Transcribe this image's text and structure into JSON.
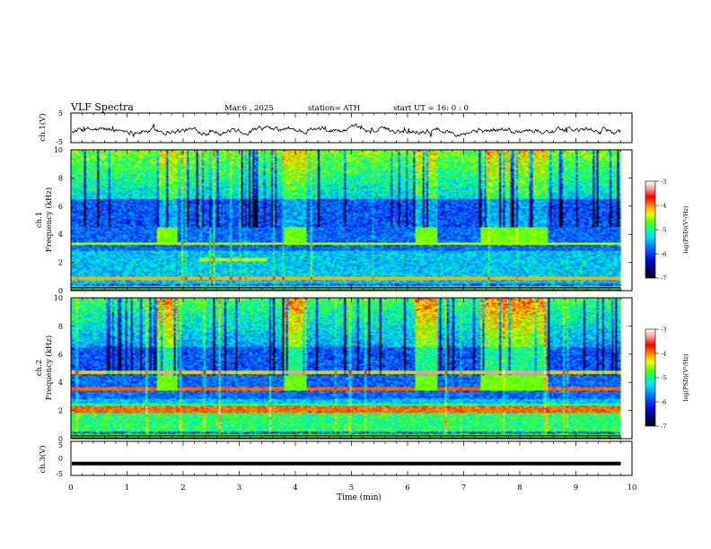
{
  "header": {
    "title": "VLF  Spectra",
    "date": "Mar.6  , 2025",
    "station": "station= ATH",
    "start_ut": "start  UT  =    16: 0  : 0"
  },
  "chart_data": [
    {
      "type": "line",
      "panel": "ch1-waveform",
      "ylabel": "ch.1(V)",
      "yticks": [
        "5",
        "-5"
      ],
      "ylim": [
        -5,
        5
      ],
      "xlim": [
        0,
        10
      ],
      "series": [
        {
          "values_description_only": false,
          "x_end": 9.8,
          "mean": 0,
          "amplitude": 1.2
        }
      ]
    },
    {
      "type": "heatmap",
      "panel": "ch1-spectrogram",
      "ylabel": "ch.1\nFrequency (kHz)",
      "ylabel_line1": "ch.1",
      "ylabel_line2": "Frequency  (kHz)",
      "yticks": [
        "10",
        "8",
        "6",
        "4",
        "2",
        "0"
      ],
      "ylim": [
        0,
        10
      ],
      "xlim": [
        0,
        10
      ],
      "data_end_min": 9.8,
      "bursts_min": [
        [
          1.52,
          1.9
        ],
        [
          3.8,
          4.2
        ],
        [
          6.15,
          6.55
        ],
        [
          7.3,
          8.5
        ]
      ],
      "colorbar": {
        "label": "log(PSD)(V²/Hz)",
        "ticks": [
          "-3",
          "-4",
          "-5",
          "-6",
          "-7"
        ],
        "range": [
          -7,
          -3
        ]
      }
    },
    {
      "type": "heatmap",
      "panel": "ch2-spectrogram",
      "ylabel_line1": "ch.2",
      "ylabel_line2": "Frequency  (kHz)",
      "yticks": [
        "10",
        "8",
        "6",
        "4",
        "2",
        "0"
      ],
      "ylim": [
        0,
        10
      ],
      "xlim": [
        0,
        10
      ],
      "data_end_min": 9.8,
      "bursts_min": [
        [
          1.52,
          1.9
        ],
        [
          3.8,
          4.2
        ],
        [
          6.15,
          6.55
        ],
        [
          7.3,
          8.5
        ]
      ],
      "colorbar": {
        "label": "log(PSD)(V²/Hz)",
        "ticks": [
          "-3",
          "-4",
          "-5",
          "-6",
          "-7"
        ],
        "range": [
          -7,
          -3
        ]
      }
    },
    {
      "type": "line",
      "panel": "ch3-waveform",
      "ylabel": "ch.3(V)",
      "yticks": [
        "5",
        "0",
        "-5"
      ],
      "ylim": [
        -5,
        5
      ],
      "xlim": [
        0,
        10
      ],
      "series": [
        {
          "level": -1.5,
          "x_end": 9.8
        }
      ]
    }
  ],
  "xaxis": {
    "label": "Time  (min)",
    "ticks": [
      "0",
      "1",
      "2",
      "3",
      "4",
      "5",
      "6",
      "7",
      "8",
      "9",
      "10"
    ]
  },
  "colors": {
    "background": "#ffffff",
    "colormap": [
      "#000000",
      "#000050",
      "#0000c8",
      "#0050ff",
      "#00c8ff",
      "#00ff96",
      "#64ff00",
      "#f0ff00",
      "#ff9600",
      "#ff0000",
      "#ffffff"
    ]
  }
}
